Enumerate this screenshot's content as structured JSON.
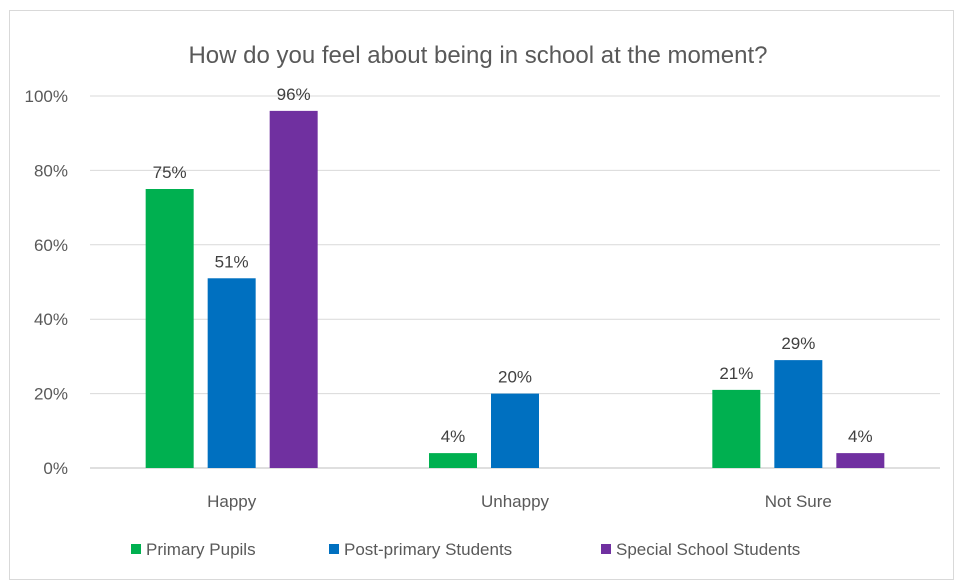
{
  "chart_data": {
    "type": "bar",
    "title": "How do you feel about being in school at the moment?",
    "categories": [
      "Happy",
      "Unhappy",
      "Not Sure"
    ],
    "series": [
      {
        "name": "Primary Pupils",
        "values": [
          75,
          4,
          21
        ],
        "labels": [
          "75%",
          "4%",
          "21%"
        ],
        "color": "#00b050"
      },
      {
        "name": "Post-primary Students",
        "values": [
          51,
          20,
          29
        ],
        "labels": [
          "51%",
          "20%",
          "29%"
        ],
        "color": "#0070c0"
      },
      {
        "name": "Special School Students",
        "values": [
          96,
          0,
          4
        ],
        "labels": [
          "96%",
          "",
          "4%"
        ],
        "color": "#7030a0"
      }
    ],
    "ylim": [
      0,
      100
    ],
    "yticks": [
      0,
      20,
      40,
      60,
      80,
      100
    ],
    "ytick_labels": [
      "0%",
      "20%",
      "40%",
      "60%",
      "80%",
      "100%"
    ],
    "grid": true,
    "legend": "bottom"
  }
}
